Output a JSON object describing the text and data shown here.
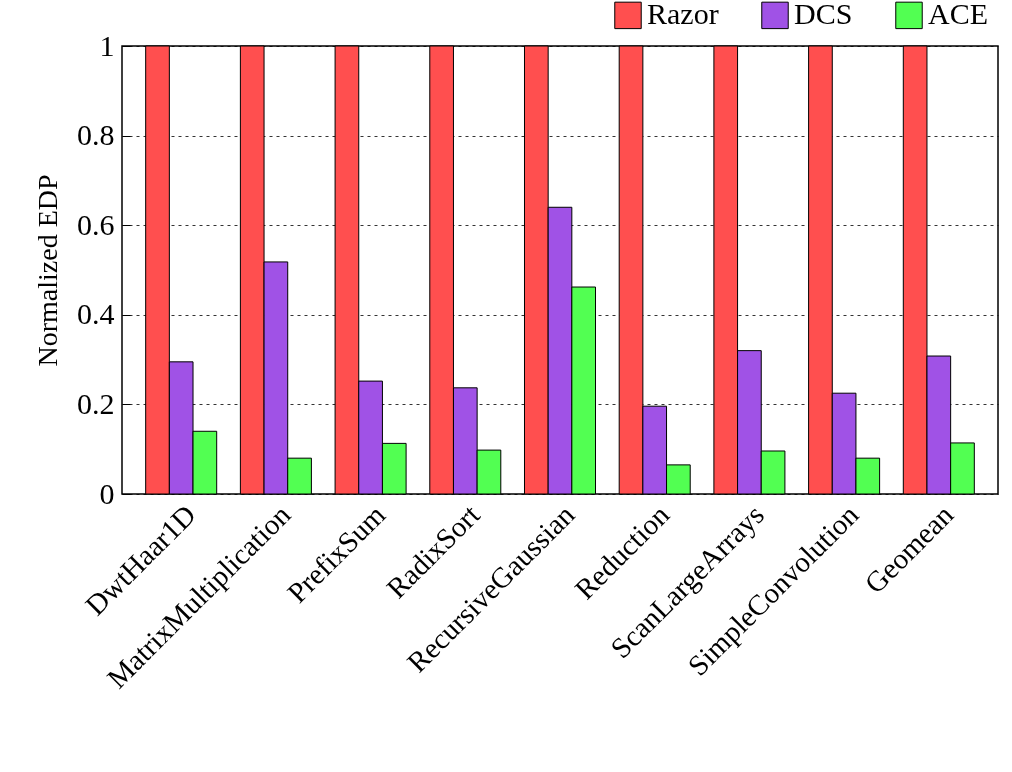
{
  "chart_data": {
    "type": "bar",
    "ylabel": "Normalized EDP",
    "categories": [
      "DwtHaar1D",
      "MatrixMultiplication",
      "PrefixSum",
      "RadixSort",
      "RecursiveGaussian",
      "Reduction",
      "ScanLargeArrays",
      "SimpleConvolution",
      "Geomean"
    ],
    "series": [
      {
        "name": "Razor",
        "color": "#ff4f4f",
        "values": [
          1,
          1,
          1,
          1,
          1,
          1,
          1,
          1,
          1
        ]
      },
      {
        "name": "DCS",
        "color": "#a052e6",
        "values": [
          0.295,
          0.518,
          0.252,
          0.237,
          0.64,
          0.196,
          0.32,
          0.225,
          0.308
        ]
      },
      {
        "name": "ACE",
        "color": "#52ff52",
        "values": [
          0.14,
          0.08,
          0.113,
          0.098,
          0.462,
          0.065,
          0.096,
          0.08,
          0.114
        ]
      }
    ],
    "ylim": [
      0,
      1
    ],
    "yticks": [
      0,
      0.2,
      0.4,
      0.6,
      0.8,
      1
    ],
    "grid": "y",
    "legend": "top right"
  }
}
